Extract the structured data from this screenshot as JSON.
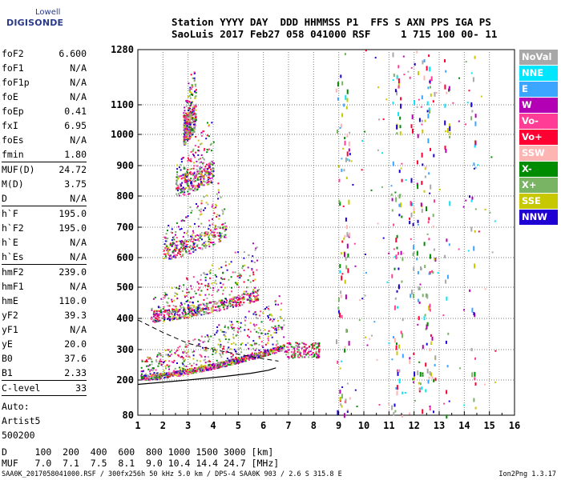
{
  "logo": {
    "line1": "Lowell",
    "line2": "DIGISONDE"
  },
  "header": {
    "line1": "Station YYYY DAY  DDD HHMMSS P1  FFS S AXN PPS IGA PS",
    "line2": "SaoLuis 2017 Feb27 058 041000 RSF     1 715 100 00- 11"
  },
  "params": {
    "group1": [
      {
        "label": "foF2",
        "value": "6.600"
      },
      {
        "label": "foF1",
        "value": "N/A"
      },
      {
        "label": "foF1p",
        "value": "N/A"
      },
      {
        "label": "foE",
        "value": "N/A"
      },
      {
        "label": "foEp",
        "value": "0.41"
      },
      {
        "label": "fxI",
        "value": "6.95"
      },
      {
        "label": "foEs",
        "value": "N/A"
      },
      {
        "label": "fmin",
        "value": "1.80"
      }
    ],
    "group2": [
      {
        "label": "MUF(D)",
        "value": "24.72"
      },
      {
        "label": "M(D)",
        "value": "3.75"
      },
      {
        "label": "D",
        "value": "N/A"
      }
    ],
    "group3": [
      {
        "label": "h`F",
        "value": "195.0"
      },
      {
        "label": "h`F2",
        "value": "195.0"
      },
      {
        "label": "h`E",
        "value": "N/A"
      },
      {
        "label": "h`Es",
        "value": "N/A"
      }
    ],
    "group4": [
      {
        "label": "hmF2",
        "value": "239.0"
      },
      {
        "label": "hmF1",
        "value": "N/A"
      },
      {
        "label": "hmE",
        "value": "110.0"
      },
      {
        "label": "yF2",
        "value": "39.3"
      },
      {
        "label": "yF1",
        "value": "N/A"
      },
      {
        "label": "yE",
        "value": "20.0"
      },
      {
        "label": "B0",
        "value": "37.6"
      },
      {
        "label": "B1",
        "value": "2.33"
      }
    ],
    "group5": [
      {
        "label": "C-level",
        "value": "33"
      }
    ],
    "auto": [
      "Auto:",
      "Artist5",
      "500200"
    ]
  },
  "table": {
    "row1": "D     100  200  400  600  800 1000 1500 3000 [km]",
    "row2": "MUF   7.0  7.1  7.5  8.1  9.0 10.4 14.4 24.7 [MHz]"
  },
  "footer": {
    "left": "SAA0K_2017058041000.RSF / 300fx256h 50 kHz 5.0 km / DPS-4 SAA0K 903 / 2.6 S 315.8 E",
    "right": "Ion2Png 1.3.17"
  },
  "legend": [
    {
      "label": "NoVal",
      "color": "#a8a8a8"
    },
    {
      "label": "NNE",
      "color": "#00e6ff"
    },
    {
      "label": "E",
      "color": "#3ca5ff"
    },
    {
      "label": "W",
      "color": "#b400b4"
    },
    {
      "label": "Vo-",
      "color": "#ff3c96"
    },
    {
      "label": "Vo+",
      "color": "#ff0032"
    },
    {
      "label": "SSW",
      "color": "#ffb4b4"
    },
    {
      "label": "X-",
      "color": "#008c00"
    },
    {
      "label": "X+",
      "color": "#78b464"
    },
    {
      "label": "SSE",
      "color": "#c8c800"
    },
    {
      "label": "NNW",
      "color": "#1e00d2"
    }
  ],
  "chart_data": {
    "type": "scatter",
    "x_ticks": [
      1,
      2,
      3,
      4,
      5,
      6,
      7,
      8,
      9,
      10,
      11,
      12,
      13,
      14,
      15,
      16
    ],
    "xlim": [
      1,
      16
    ],
    "y_ticks": [
      80,
      200,
      300,
      400,
      500,
      600,
      700,
      800,
      900,
      1000,
      1100,
      1280
    ],
    "ylim": [
      80,
      1280
    ],
    "y_scale": "quasi-log",
    "grid": true,
    "traces": [
      {
        "order": 1,
        "x_start": 1.1,
        "x_end": 6.8,
        "h_start": 205,
        "h_end": 305
      },
      {
        "order": 2,
        "x_start": 1.5,
        "x_end": 5.8,
        "h_start": 400,
        "h_end": 470
      },
      {
        "order": 3,
        "x_start": 2.0,
        "x_end": 4.5,
        "h_start": 610,
        "h_end": 680
      },
      {
        "order": 4,
        "x_start": 2.5,
        "x_end": 4.0,
        "h_start": 820,
        "h_end": 870
      },
      {
        "order": 5,
        "x_start": 2.8,
        "x_end": 3.3,
        "h_start": 995,
        "h_end": 1050
      }
    ],
    "profile_curve": [
      [
        1.0,
        185
      ],
      [
        3,
        200
      ],
      [
        4.5,
        212
      ],
      [
        5.5,
        222
      ],
      [
        6.2,
        232
      ],
      [
        6.5,
        240
      ]
    ],
    "dashed_curve": [
      [
        1.0,
        395
      ],
      [
        2,
        355
      ],
      [
        3,
        320
      ],
      [
        4,
        300
      ],
      [
        5,
        285
      ],
      [
        6,
        270
      ],
      [
        6.6,
        262
      ]
    ]
  }
}
